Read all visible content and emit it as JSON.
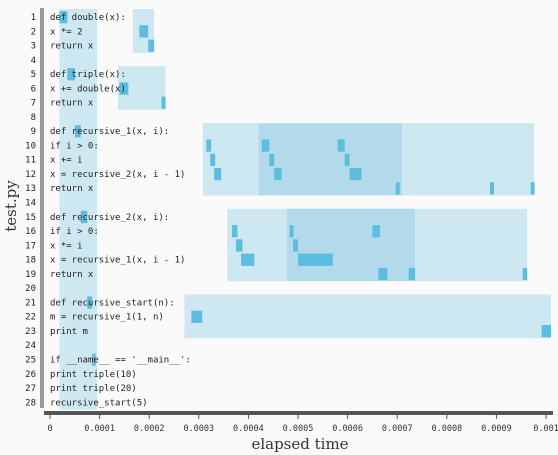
{
  "file_label": "test.py",
  "xlabel": "elapsed time",
  "colors": {
    "light": "#c6e4f0",
    "mid": "#a6d4e8",
    "dark": "#5cbde0",
    "axis": "#555555",
    "gutter": "#9a9a9a"
  },
  "source_lines": [
    "def double(x):",
    "  x *= 2",
    "  return x",
    "",
    "def triple(x):",
    "  x += double(x)",
    "  return x",
    "",
    "def recursive_1(x, i):",
    "  if i > 0:",
    "    x += i",
    "    x = recursive_2(x, i - 1)",
    "  return x",
    "",
    "def recursive_2(x, i):",
    "  if i > 0:",
    "    x *= i",
    "    x = recursive_1(x, i - 1)",
    "  return x",
    "",
    "def recursive_start(n):",
    "  m = recursive_1(1, n)",
    "  print m",
    "",
    "if __name__ == '__main__':",
    "  print triple(10)",
    "  print triple(20)",
    "  recursive_start(5)"
  ],
  "chart_data": {
    "type": "timeline",
    "xlabel": "elapsed time",
    "ylabel": "test.py",
    "xlim": [
      0,
      0.00101
    ],
    "x_ticks": [
      {
        "v": 0,
        "label": "0"
      },
      {
        "v": 0.0001,
        "label": "0.0001"
      },
      {
        "v": 0.0002,
        "label": "0.0002"
      },
      {
        "v": 0.0003,
        "label": "0.0003"
      },
      {
        "v": 0.0004,
        "label": "0.0004"
      },
      {
        "v": 0.0005,
        "label": "0.0005"
      },
      {
        "v": 0.0006,
        "label": "0.0006"
      },
      {
        "v": 0.0007,
        "label": "0.0007"
      },
      {
        "v": 0.0008,
        "label": "0.0008"
      },
      {
        "v": 0.0009,
        "label": "0.0009"
      },
      {
        "v": 0.001,
        "label": "0.001"
      }
    ],
    "function_spans": [
      {
        "name": "double",
        "l1": 1,
        "l2": 3,
        "x0": 0.000167,
        "x1": 0.00021,
        "shade": "light"
      },
      {
        "name": "triple",
        "l1": 5,
        "l2": 7,
        "x0": 0.000137,
        "x1": 0.000233,
        "shade": "light"
      },
      {
        "name": "recursive_1",
        "l1": 9,
        "l2": 13,
        "x0": 0.000308,
        "x1": 0.00042,
        "shade": "light"
      },
      {
        "name": "recursive_1",
        "l1": 9,
        "l2": 13,
        "x0": 0.00042,
        "x1": 0.000574,
        "shade": "mid"
      },
      {
        "name": "recursive_1",
        "l1": 9,
        "l2": 13,
        "x0": 0.000574,
        "x1": 0.00071,
        "shade": "mid"
      },
      {
        "name": "recursive_1",
        "l1": 9,
        "l2": 13,
        "x0": 0.00071,
        "x1": 0.000893,
        "shade": "light"
      },
      {
        "name": "recursive_1",
        "l1": 9,
        "l2": 13,
        "x0": 0.000893,
        "x1": 0.000976,
        "shade": "light"
      },
      {
        "name": "recursive_2",
        "l1": 15,
        "l2": 19,
        "x0": 0.000357,
        "x1": 0.000478,
        "shade": "light"
      },
      {
        "name": "recursive_2",
        "l1": 15,
        "l2": 19,
        "x0": 0.000478,
        "x1": 0.000645,
        "shade": "mid"
      },
      {
        "name": "recursive_2",
        "l1": 15,
        "l2": 19,
        "x0": 0.000645,
        "x1": 0.000736,
        "shade": "mid"
      },
      {
        "name": "recursive_2",
        "l1": 15,
        "l2": 19,
        "x0": 0.000736,
        "x1": 0.000962,
        "shade": "light"
      },
      {
        "name": "recursive_start",
        "l1": 21,
        "l2": 23,
        "x0": 0.000271,
        "x1": 0.00101,
        "shade": "light"
      },
      {
        "name": "module",
        "l1": 1,
        "l2": 28,
        "x0": 1.9e-05,
        "x1": 9.5e-05,
        "shade": "light"
      }
    ],
    "line_events": [
      {
        "line": 1,
        "x0": 1.9e-05,
        "x1": 3.5e-05
      },
      {
        "line": 2,
        "x0": 0.00018,
        "x1": 0.000198
      },
      {
        "line": 3,
        "x0": 0.000198,
        "x1": 0.00021
      },
      {
        "line": 5,
        "x0": 3.5e-05,
        "x1": 5e-05
      },
      {
        "line": 6,
        "x0": 0.00014,
        "x1": 0.000158
      },
      {
        "line": 7,
        "x0": 0.000225,
        "x1": 0.000233
      },
      {
        "line": 9,
        "x0": 5e-05,
        "x1": 6.2e-05
      },
      {
        "line": 10,
        "x0": 0.000315,
        "x1": 0.000325
      },
      {
        "line": 11,
        "x0": 0.000323,
        "x1": 0.000333
      },
      {
        "line": 12,
        "x0": 0.000331,
        "x1": 0.000345
      },
      {
        "line": 10,
        "x0": 0.000427,
        "x1": 0.000442
      },
      {
        "line": 11,
        "x0": 0.000442,
        "x1": 0.000452
      },
      {
        "line": 12,
        "x0": 0.000452,
        "x1": 0.000467
      },
      {
        "line": 10,
        "x0": 0.00058,
        "x1": 0.000594
      },
      {
        "line": 11,
        "x0": 0.000594,
        "x1": 0.000604
      },
      {
        "line": 12,
        "x0": 0.000604,
        "x1": 0.000628
      },
      {
        "line": 13,
        "x0": 0.000697,
        "x1": 0.000705
      },
      {
        "line": 13,
        "x0": 0.000887,
        "x1": 0.000895
      },
      {
        "line": 13,
        "x0": 0.000969,
        "x1": 0.000977
      },
      {
        "line": 15,
        "x0": 6.2e-05,
        "x1": 7.5e-05
      },
      {
        "line": 16,
        "x0": 0.000367,
        "x1": 0.000378
      },
      {
        "line": 17,
        "x0": 0.000375,
        "x1": 0.000388
      },
      {
        "line": 18,
        "x0": 0.000385,
        "x1": 0.000412
      },
      {
        "line": 16,
        "x0": 0.000483,
        "x1": 0.000491
      },
      {
        "line": 17,
        "x0": 0.00049,
        "x1": 0.0005
      },
      {
        "line": 18,
        "x0": 0.0005,
        "x1": 0.00057
      },
      {
        "line": 16,
        "x0": 0.00065,
        "x1": 0.000665
      },
      {
        "line": 19,
        "x0": 0.000662,
        "x1": 0.00068
      },
      {
        "line": 19,
        "x0": 0.000723,
        "x1": 0.000736
      },
      {
        "line": 19,
        "x0": 0.000953,
        "x1": 0.000962
      },
      {
        "line": 21,
        "x0": 7.5e-05,
        "x1": 8.5e-05
      },
      {
        "line": 22,
        "x0": 0.000285,
        "x1": 0.000307
      },
      {
        "line": 23,
        "x0": 0.000991,
        "x1": 0.00101
      },
      {
        "line": 25,
        "x0": 8.5e-05,
        "x1": 9.2e-05
      }
    ]
  }
}
